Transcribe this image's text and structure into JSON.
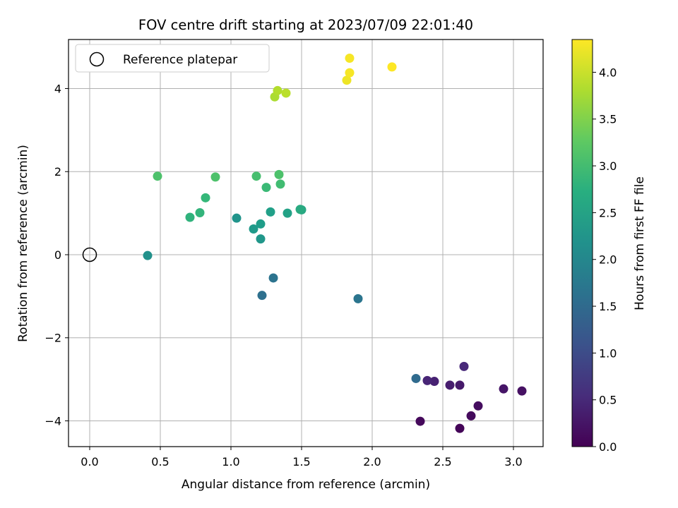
{
  "chart_data": {
    "type": "scatter",
    "title": "FOV centre drift starting at 2023/07/09 22:01:40",
    "xlabel": "Angular distance from reference (arcmin)",
    "ylabel": "Rotation from reference (arcmin)",
    "xlim": [
      -0.15,
      3.21
    ],
    "ylim": [
      -4.62,
      5.18
    ],
    "xticks": [
      0.0,
      0.5,
      1.0,
      1.5,
      2.0,
      2.5,
      3.0
    ],
    "xtick_labels": [
      "0.0",
      "0.5",
      "1.0",
      "1.5",
      "2.0",
      "2.5",
      "3.0"
    ],
    "yticks": [
      -4,
      -2,
      0,
      2,
      4
    ],
    "ytick_labels": [
      "−4",
      "−2",
      "0",
      "2",
      "4"
    ],
    "grid": true,
    "legend": {
      "placement": "top-left",
      "entries": [
        {
          "label": "Reference platepar",
          "marker": "open-circle"
        }
      ]
    },
    "reference_point": {
      "x": 0.0,
      "y": 0.0
    },
    "colorbar": {
      "label": "Hours from first FF file",
      "range": [
        0.0,
        4.35
      ],
      "ticks": [
        0.0,
        0.5,
        1.0,
        1.5,
        2.0,
        2.5,
        3.0,
        3.5,
        4.0
      ],
      "tick_labels": [
        "0.0",
        "0.5",
        "1.0",
        "1.5",
        "2.0",
        "2.5",
        "3.0",
        "3.5",
        "4.0"
      ],
      "colormap": "viridis"
    },
    "points": [
      {
        "x": 2.62,
        "y": -4.18,
        "c": 0.05
      },
      {
        "x": 2.34,
        "y": -4.01,
        "c": 0.1
      },
      {
        "x": 2.7,
        "y": -3.88,
        "c": 0.12
      },
      {
        "x": 2.75,
        "y": -3.64,
        "c": 0.15
      },
      {
        "x": 3.06,
        "y": -3.28,
        "c": 0.2
      },
      {
        "x": 2.93,
        "y": -3.23,
        "c": 0.25
      },
      {
        "x": 2.62,
        "y": -3.14,
        "c": 0.3
      },
      {
        "x": 2.55,
        "y": -3.14,
        "c": 0.35
      },
      {
        "x": 2.44,
        "y": -3.05,
        "c": 0.4
      },
      {
        "x": 2.39,
        "y": -3.03,
        "c": 0.45
      },
      {
        "x": 2.65,
        "y": -2.69,
        "c": 0.5
      },
      {
        "x": 2.31,
        "y": -2.98,
        "c": 1.5
      },
      {
        "x": 1.22,
        "y": -0.98,
        "c": 1.6
      },
      {
        "x": 1.3,
        "y": -0.56,
        "c": 1.65
      },
      {
        "x": 1.9,
        "y": -1.06,
        "c": 1.7
      },
      {
        "x": 0.41,
        "y": -0.02,
        "c": 2.2
      },
      {
        "x": 1.04,
        "y": 0.88,
        "c": 2.25
      },
      {
        "x": 1.21,
        "y": 0.38,
        "c": 2.3
      },
      {
        "x": 1.16,
        "y": 0.62,
        "c": 2.35
      },
      {
        "x": 1.21,
        "y": 0.74,
        "c": 2.4
      },
      {
        "x": 1.28,
        "y": 1.03,
        "c": 2.45
      },
      {
        "x": 1.4,
        "y": 1.0,
        "c": 2.5
      },
      {
        "x": 1.5,
        "y": 1.08,
        "c": 2.6
      },
      {
        "x": 1.49,
        "y": 1.09,
        "c": 2.65
      },
      {
        "x": 0.71,
        "y": 0.9,
        "c": 2.8
      },
      {
        "x": 0.78,
        "y": 1.01,
        "c": 2.85
      },
      {
        "x": 0.82,
        "y": 1.37,
        "c": 2.9
      },
      {
        "x": 1.25,
        "y": 1.62,
        "c": 2.95
      },
      {
        "x": 1.35,
        "y": 1.7,
        "c": 3.0
      },
      {
        "x": 1.18,
        "y": 1.89,
        "c": 3.05
      },
      {
        "x": 1.34,
        "y": 1.93,
        "c": 3.1
      },
      {
        "x": 0.89,
        "y": 1.87,
        "c": 3.1
      },
      {
        "x": 0.48,
        "y": 1.89,
        "c": 3.1
      },
      {
        "x": 1.31,
        "y": 3.8,
        "c": 3.8
      },
      {
        "x": 1.33,
        "y": 3.95,
        "c": 3.85
      },
      {
        "x": 1.39,
        "y": 3.89,
        "c": 3.9
      },
      {
        "x": 1.82,
        "y": 4.2,
        "c": 4.25
      },
      {
        "x": 1.84,
        "y": 4.38,
        "c": 4.3
      },
      {
        "x": 1.84,
        "y": 4.73,
        "c": 4.3
      },
      {
        "x": 2.14,
        "y": 4.52,
        "c": 4.35
      }
    ]
  }
}
